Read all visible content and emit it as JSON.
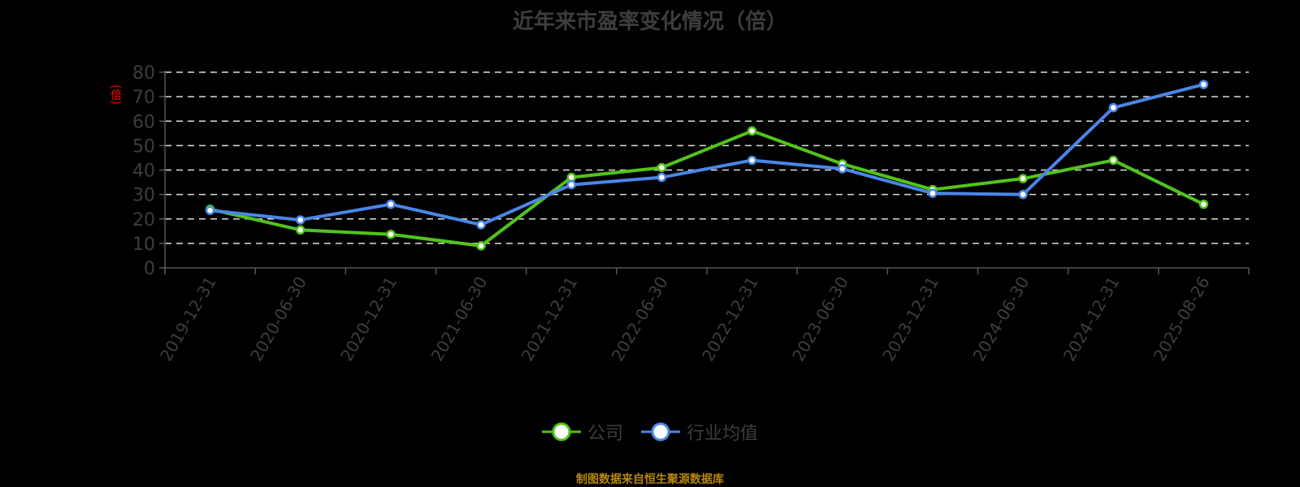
{
  "title": "近年来市盈率变化情况（倍）",
  "y_axis_label": "(倍)",
  "footer": "制图数据来自恒生聚源数据库",
  "colors": {
    "company": "#52c41a",
    "industry": "#4a86e8",
    "axis": "#555555",
    "grid": "#dddddd",
    "text": "#3d3d3d",
    "footer": "#b8860b",
    "ylabel": "#ff0000"
  },
  "legend": [
    {
      "name": "公司",
      "color": "#52c41a"
    },
    {
      "name": "行业均值",
      "color": "#4a86e8"
    }
  ],
  "chart_data": {
    "type": "line",
    "title": "近年来市盈率变化情况（倍）",
    "xlabel": "",
    "ylabel": "(倍)",
    "ylim": [
      0,
      80
    ],
    "yticks": [
      0,
      10,
      20,
      30,
      40,
      50,
      60,
      70,
      80
    ],
    "grid": true,
    "legend_position": "bottom",
    "categories": [
      "2019-12-31",
      "2020-06-30",
      "2020-12-31",
      "2021-06-30",
      "2021-12-31",
      "2022-06-30",
      "2022-12-31",
      "2023-06-30",
      "2023-12-31",
      "2024-06-30",
      "2024-12-31",
      "2025-08-26"
    ],
    "series": [
      {
        "name": "公司",
        "color": "#52c41a",
        "values": [
          24.0,
          15.5,
          13.7,
          9.0,
          37.0,
          41.0,
          56.0,
          42.5,
          32.0,
          36.5,
          44.0,
          26.0
        ]
      },
      {
        "name": "行业均值",
        "color": "#4a86e8",
        "values": [
          23.5,
          19.6,
          26.0,
          17.6,
          34.0,
          37.0,
          44.0,
          40.5,
          30.5,
          30.0,
          65.5,
          75.0
        ]
      }
    ]
  }
}
